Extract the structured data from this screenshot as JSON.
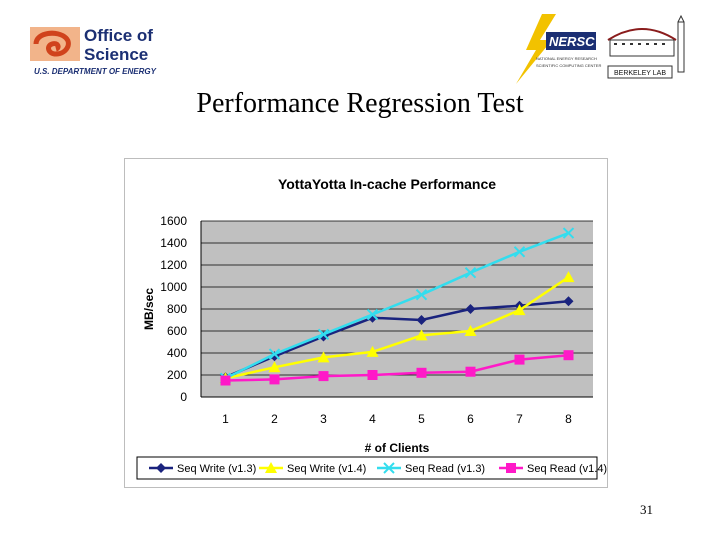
{
  "slide": {
    "title": "Performance Regression Test",
    "page_number": "31"
  },
  "logos": {
    "doe_line1": "Office of",
    "doe_line2": "Science",
    "doe_sub": "U.S. DEPARTMENT OF ENERGY",
    "nersc": "NERSC",
    "nersc_sub1": "NATIONAL ENERGY RESEARCH",
    "nersc_sub2": "SCIENTIFIC COMPUTING CENTER",
    "berkeley": "BERKELEY LAB"
  },
  "chart_data": {
    "type": "line",
    "title": "YottaYotta In-cache Performance",
    "xlabel": "# of Clients",
    "ylabel": "MB/sec",
    "categories": [
      "1",
      "2",
      "3",
      "4",
      "5",
      "6",
      "7",
      "8"
    ],
    "ylim": [
      0,
      1600
    ],
    "yticks": [
      0,
      200,
      400,
      600,
      800,
      1000,
      1200,
      1400,
      1600
    ],
    "grid": true,
    "legend_position": "bottom",
    "series": [
      {
        "name": "Seq Write (v1.3)",
        "color": "#1a237e",
        "marker": "diamond",
        "values": [
          180,
          370,
          550,
          720,
          700,
          800,
          830,
          870
        ]
      },
      {
        "name": "Seq Write (v1.4)",
        "color": "#ffff00",
        "marker": "triangle",
        "values": [
          170,
          270,
          360,
          410,
          560,
          600,
          790,
          1090
        ]
      },
      {
        "name": "Seq Read (v1.3)",
        "color": "#33ddee",
        "marker": "x",
        "values": [
          170,
          390,
          570,
          750,
          930,
          1130,
          1320,
          1490
        ]
      },
      {
        "name": "Seq Read (v1.4)",
        "color": "#ff19c8",
        "marker": "square",
        "values": [
          150,
          160,
          190,
          200,
          220,
          230,
          340,
          380
        ]
      }
    ]
  }
}
